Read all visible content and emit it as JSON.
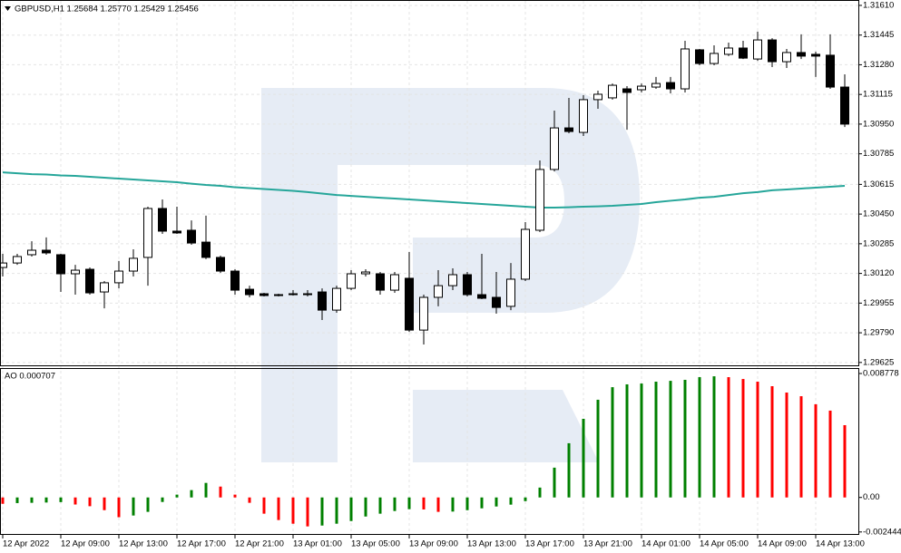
{
  "chart_data": [
    {
      "type": "candlestick",
      "title": "GBPUSD,H1  1.25684 1.25770 1.25429 1.25456",
      "categories": [
        "12 Apr 2022",
        null,
        null,
        null,
        "12 Apr 09:00",
        null,
        null,
        null,
        "12 Apr 13:00",
        null,
        null,
        null,
        "12 Apr 17:00",
        null,
        null,
        null,
        "12 Apr 21:00",
        null,
        null,
        null,
        "13 Apr 01:00",
        null,
        null,
        null,
        "13 Apr 05:00",
        null,
        null,
        null,
        "13 Apr 09:00",
        null,
        null,
        null,
        "13 Apr 13:00",
        null,
        null,
        null,
        "13 Apr 17:00",
        null,
        null,
        null,
        "13 Apr 21:00",
        null,
        null,
        null,
        "14 Apr 01:00",
        null,
        null,
        null,
        "14 Apr 05:00",
        null,
        null,
        null,
        "14 Apr 09:00",
        null,
        null,
        null,
        "14 Apr 13:00",
        null,
        null
      ],
      "open": [
        1.30153,
        1.30178,
        1.30224,
        1.30249,
        1.30224,
        1.30118,
        1.30143,
        1.30017,
        1.30068,
        1.30133,
        1.30209,
        1.30481,
        1.30355,
        1.3036,
        1.30294,
        1.30209,
        1.30133,
        1.30032,
        1.30007,
        1.30002,
        1.30002,
        1.30007,
        1.30017,
        1.29916,
        1.30037,
        1.30118,
        1.30118,
        1.30027,
        1.30093,
        1.29805,
        1.29987,
        1.30052,
        1.30113,
        1.30002,
        1.29987,
        1.29937,
        1.30088,
        1.3036,
        1.30698,
        1.30929,
        1.30904,
        1.31086,
        1.31096,
        1.31146,
        1.31141,
        1.31156,
        1.31181,
        1.31146,
        1.31363,
        1.31287,
        1.31338,
        1.31373,
        1.31312,
        1.31418,
        1.31297,
        1.31348,
        1.31338,
        1.31333,
        1.31156
      ],
      "high": [
        1.30229,
        1.30229,
        1.30299,
        1.3032,
        1.30229,
        1.30168,
        1.30153,
        1.30078,
        1.30189,
        1.30254,
        1.30491,
        1.30531,
        1.30491,
        1.30415,
        1.30441,
        1.30219,
        1.30143,
        1.30052,
        1.30012,
        1.30007,
        1.30027,
        1.30027,
        1.30037,
        1.30052,
        1.30138,
        1.30143,
        1.30128,
        1.30128,
        1.30239,
        1.30002,
        1.30138,
        1.30148,
        1.30128,
        1.30229,
        1.30128,
        1.30178,
        1.30405,
        1.30748,
        1.31025,
        1.31096,
        1.31111,
        1.31136,
        1.31176,
        1.31161,
        1.31176,
        1.31212,
        1.31212,
        1.31413,
        1.31368,
        1.31388,
        1.31403,
        1.31413,
        1.31464,
        1.31428,
        1.31368,
        1.31449,
        1.31353,
        1.31449,
        1.31227
      ],
      "low": [
        1.30103,
        1.30168,
        1.30214,
        1.30224,
        1.30017,
        1.30002,
        1.30002,
        1.29926,
        1.30037,
        1.30103,
        1.30052,
        1.3034,
        1.3034,
        1.30279,
        1.30199,
        1.30123,
        1.30002,
        1.29987,
        1.29992,
        1.29992,
        1.29997,
        1.29992,
        1.29861,
        1.29901,
        1.30027,
        1.30103,
        1.30002,
        1.30012,
        1.29795,
        1.29725,
        1.29937,
        1.30027,
        1.29992,
        1.29977,
        1.29896,
        1.29916,
        1.30078,
        1.3035,
        1.30687,
        1.30899,
        1.30884,
        1.31035,
        1.31086,
        1.30919,
        1.31126,
        1.31146,
        1.31121,
        1.31126,
        1.31277,
        1.31277,
        1.31328,
        1.31312,
        1.31302,
        1.31267,
        1.31262,
        1.31312,
        1.31212,
        1.31146,
        1.30934
      ],
      "close": [
        1.30178,
        1.30214,
        1.30249,
        1.30234,
        1.30118,
        1.30138,
        1.30012,
        1.30068,
        1.30133,
        1.30204,
        1.30481,
        1.30355,
        1.30345,
        1.30289,
        1.30209,
        1.30133,
        1.30027,
        1.30002,
        1.29997,
        1.29997,
        1.30007,
        1.30002,
        1.29916,
        1.30037,
        1.30118,
        1.30128,
        1.30027,
        1.30113,
        1.29805,
        1.29987,
        1.30052,
        1.30113,
        1.30002,
        1.29982,
        1.29931,
        1.30088,
        1.30365,
        1.30698,
        1.30929,
        1.30909,
        1.31086,
        1.31116,
        1.31166,
        1.31126,
        1.31161,
        1.31176,
        1.31146,
        1.31368,
        1.31287,
        1.31343,
        1.31373,
        1.31317,
        1.31418,
        1.31297,
        1.31348,
        1.31328,
        1.31328,
        1.31156,
        1.3095
      ],
      "up_color": "#ffffff",
      "down_color": "#000000",
      "overlays": [
        {
          "type": "line",
          "color": "#26a69a",
          "values": [
            1.30682,
            1.30677,
            1.30672,
            1.3067,
            1.30665,
            1.30662,
            1.30657,
            1.30652,
            1.30647,
            1.30642,
            1.30637,
            1.30632,
            1.30627,
            1.30619,
            1.30612,
            1.30607,
            1.30599,
            1.30594,
            1.30589,
            1.30584,
            1.30579,
            1.30572,
            1.30564,
            1.30556,
            1.30551,
            1.30546,
            1.30541,
            1.30536,
            1.30531,
            1.30526,
            1.30521,
            1.30516,
            1.30511,
            1.30506,
            1.30501,
            1.30496,
            1.30491,
            1.30486,
            1.30486,
            1.30488,
            1.30491,
            1.30493,
            1.30496,
            1.30501,
            1.30506,
            1.30516,
            1.30524,
            1.30531,
            1.30541,
            1.30546,
            1.30556,
            1.30566,
            1.30572,
            1.30582,
            1.30587,
            1.30592,
            1.30597,
            1.30602,
            1.30607
          ]
        }
      ],
      "ylim": [
        1.29609,
        1.3164
      ],
      "yticks": [
        {
          "value": 1.3161,
          "label": "1.31610"
        },
        1.31445,
        {
          "value": 1.3128,
          "label": "1.31280"
        },
        1.31115,
        {
          "value": 1.3095,
          "label": "1.30950"
        },
        1.30785,
        1.30615,
        {
          "value": 1.3045,
          "label": "1.30450"
        },
        1.30285,
        {
          "value": 1.3012,
          "label": "1.30120"
        },
        1.29955,
        {
          "value": 1.2979,
          "label": "1.29790"
        },
        1.29625
      ],
      "grid": true
    },
    {
      "type": "bar",
      "title": "AO 0.000707",
      "values": [
        -0.00045,
        -0.0004,
        -0.00038,
        -0.00036,
        -0.00033,
        -0.0005,
        -0.00062,
        -0.0009,
        -0.0014,
        -0.00128,
        -0.00102,
        -0.00032,
        0.0002,
        0.00052,
        0.00103,
        0.00077,
        0.0002,
        -0.00038,
        -0.00115,
        -0.0016,
        -0.00186,
        -0.00205,
        -0.00199,
        -0.00186,
        -0.00167,
        -0.00135,
        -0.00115,
        -0.00096,
        -0.00083,
        -0.00085,
        -0.00102,
        -0.001,
        -0.0009,
        -0.00077,
        -0.00064,
        -0.00051,
        -0.00026,
        0.0007,
        0.00211,
        0.00384,
        0.00557,
        0.00692,
        0.00781,
        0.00801,
        0.00807,
        0.0082,
        0.00826,
        0.00833,
        0.00852,
        0.00858,
        0.00852,
        0.00839,
        0.0082,
        0.00788,
        0.00743,
        0.00717,
        0.0066,
        0.00615,
        0.00512
      ],
      "colors": [
        "#ff0000",
        "#008000",
        "#008000",
        "#008000",
        "#008000",
        "#ff0000",
        "#ff0000",
        "#ff0000",
        "#ff0000",
        "#008000",
        "#008000",
        "#008000",
        "#008000",
        "#008000",
        "#008000",
        "#ff0000",
        "#ff0000",
        "#ff0000",
        "#ff0000",
        "#ff0000",
        "#ff0000",
        "#ff0000",
        "#008000",
        "#008000",
        "#008000",
        "#008000",
        "#008000",
        "#008000",
        "#008000",
        "#ff0000",
        "#ff0000",
        "#008000",
        "#008000",
        "#008000",
        "#008000",
        "#008000",
        "#008000",
        "#008000",
        "#008000",
        "#008000",
        "#008000",
        "#008000",
        "#008000",
        "#008000",
        "#008000",
        "#008000",
        "#008000",
        "#008000",
        "#008000",
        "#008000",
        "#ff0000",
        "#ff0000",
        "#ff0000",
        "#ff0000",
        "#ff0000",
        "#ff0000",
        "#ff0000",
        "#ff0000",
        "#ff0000"
      ],
      "ylim": [
        -0.00265,
        0.0091
      ],
      "yticks": [
        0.008778,
        {
          "value": 0,
          "label": "0.00"
        },
        -0.002444
      ]
    }
  ]
}
